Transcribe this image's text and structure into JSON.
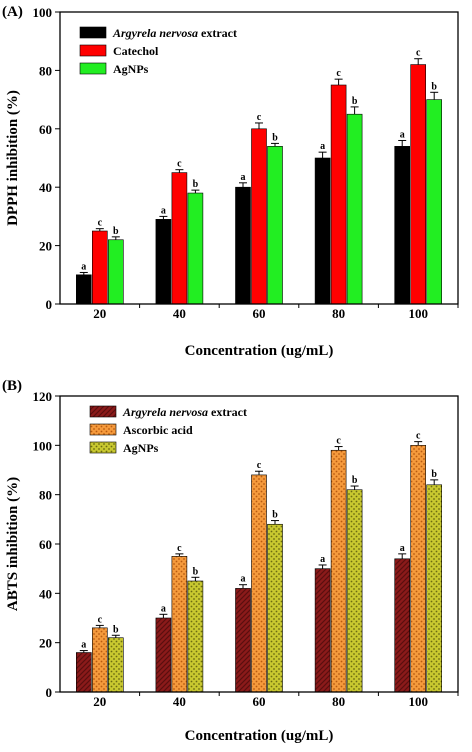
{
  "chart_data": [
    {
      "panel_label": "(A)",
      "type": "bar",
      "categories": [
        "20",
        "40",
        "60",
        "80",
        "100"
      ],
      "xlabel": "Concentration (ug/mL)",
      "ylabel": "DPPH inhibition (%)",
      "ylim": [
        0,
        100
      ],
      "yticks": [
        "0",
        "20",
        "40",
        "60",
        "80",
        "100"
      ],
      "legend_position": "top-left",
      "series": [
        {
          "name_italic": "Argyrela nervosa",
          "name_rest": " extract",
          "color": "#000000",
          "pattern": "solid",
          "values": [
            10,
            29,
            40,
            50,
            54
          ],
          "errors": [
            0.8,
            1,
            1.5,
            2,
            2
          ],
          "letters": [
            "a",
            "a",
            "a",
            "a",
            "a"
          ]
        },
        {
          "name_italic": "",
          "name_rest": "Catechol",
          "color": "#ff0000",
          "pattern": "solid",
          "values": [
            25,
            45,
            60,
            75,
            82
          ],
          "errors": [
            0.8,
            1,
            2,
            2,
            2
          ],
          "letters": [
            "c",
            "c",
            "c",
            "c",
            "c"
          ]
        },
        {
          "name_italic": "",
          "name_rest": "AgNPs",
          "color": "#22ee22",
          "pattern": "solid",
          "values": [
            22,
            38,
            54,
            65,
            70
          ],
          "errors": [
            1,
            1,
            1,
            2.5,
            2.5
          ],
          "letters": [
            "b",
            "b",
            "b",
            "b",
            "b"
          ]
        }
      ]
    },
    {
      "panel_label": "(B)",
      "type": "bar",
      "categories": [
        "20",
        "40",
        "60",
        "80",
        "100"
      ],
      "xlabel": "Concentration (ug/mL)",
      "ylabel": "ABTS inhibition (%)",
      "ylim": [
        0,
        120
      ],
      "yticks": [
        "0",
        "20",
        "40",
        "60",
        "80",
        "100",
        "120"
      ],
      "legend_position": "top-left",
      "series": [
        {
          "name_italic": "Argyrela nervosa",
          "name_rest": " extract",
          "color": "#8b1a1a",
          "pattern": "hatch",
          "values": [
            16,
            30,
            42,
            50,
            54
          ],
          "errors": [
            0.8,
            1.5,
            1.5,
            1.5,
            2
          ],
          "letters": [
            "a",
            "a",
            "a",
            "a",
            "a"
          ]
        },
        {
          "name_italic": "",
          "name_rest": "Ascorbic acid",
          "color": "#f59a3c",
          "pattern": "dots",
          "values": [
            26,
            55,
            88,
            98,
            100
          ],
          "errors": [
            1,
            1,
            1.5,
            1.5,
            1.5
          ],
          "letters": [
            "c",
            "c",
            "c",
            "c",
            "c"
          ]
        },
        {
          "name_italic": "",
          "name_rest": "AgNPs",
          "color": "#c8c830",
          "pattern": "dots",
          "values": [
            22,
            45,
            68,
            82,
            84
          ],
          "errors": [
            1,
            1.5,
            1.5,
            1.5,
            2
          ],
          "letters": [
            "b",
            "b",
            "b",
            "b",
            "b"
          ]
        }
      ]
    }
  ]
}
